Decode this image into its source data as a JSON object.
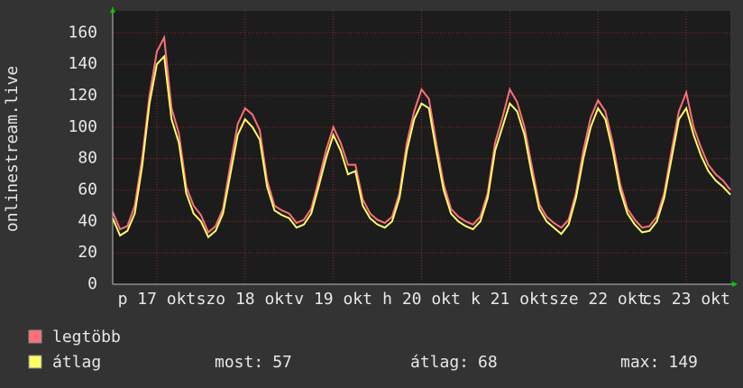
{
  "chart_data": {
    "type": "line",
    "ylabel": "onlinestream.live",
    "x": [
      0,
      2,
      4,
      6,
      8,
      10,
      12,
      14,
      16,
      18,
      20,
      22,
      24,
      26,
      28,
      30,
      32,
      34,
      36,
      38,
      40,
      42,
      44,
      46,
      48,
      50,
      52,
      54,
      56,
      58,
      60,
      62,
      64,
      66,
      68,
      70,
      72,
      74,
      76,
      78,
      80,
      82,
      84,
      86,
      88,
      90,
      92,
      94,
      96,
      98,
      100,
      102,
      104,
      106,
      108,
      110,
      112,
      114,
      116,
      118,
      120,
      122,
      124,
      126,
      128,
      130,
      132,
      134,
      136,
      138,
      140,
      142,
      144,
      146,
      148,
      150,
      152,
      154,
      156,
      158,
      160,
      162,
      164,
      166,
      168
    ],
    "series": [
      {
        "name": "legtöbb",
        "color": "#ff707a",
        "values": [
          46,
          35,
          37,
          50,
          80,
          120,
          148,
          157,
          112,
          96,
          62,
          50,
          44,
          33,
          37,
          48,
          76,
          102,
          112,
          108,
          98,
          66,
          50,
          47,
          45,
          39,
          41,
          48,
          66,
          85,
          100,
          90,
          76,
          76,
          54,
          45,
          41,
          39,
          43,
          58,
          90,
          110,
          124,
          118,
          90,
          64,
          48,
          43,
          40,
          38,
          43,
          58,
          90,
          106,
          124,
          116,
          100,
          75,
          51,
          43,
          39,
          36,
          41,
          58,
          85,
          106,
          117,
          110,
          90,
          64,
          48,
          41,
          36,
          37,
          43,
          58,
          85,
          110,
          122,
          100,
          87,
          76,
          70,
          66,
          60
        ]
      },
      {
        "name": "átlag",
        "color": "#ffff66",
        "values": [
          42,
          31,
          34,
          45,
          75,
          115,
          140,
          145,
          105,
          90,
          58,
          45,
          40,
          30,
          34,
          45,
          70,
          95,
          105,
          100,
          92,
          62,
          47,
          44,
          42,
          36,
          38,
          45,
          62,
          80,
          95,
          85,
          70,
          72,
          50,
          42,
          38,
          36,
          40,
          55,
          85,
          105,
          115,
          112,
          85,
          60,
          45,
          40,
          37,
          35,
          40,
          55,
          85,
          100,
          115,
          110,
          95,
          70,
          48,
          40,
          36,
          32,
          38,
          55,
          80,
          100,
          112,
          105,
          85,
          60,
          45,
          38,
          33,
          34,
          40,
          55,
          80,
          105,
          112,
          95,
          82,
          72,
          66,
          62,
          57
        ]
      }
    ],
    "xlim": [
      0,
      168
    ],
    "xticks": [
      {
        "value": 12,
        "label": "p 17 okt"
      },
      {
        "value": 36,
        "label": "szo 18 okt"
      },
      {
        "value": 60,
        "label": "v 19 okt"
      },
      {
        "value": 84,
        "label": "h 20 okt"
      },
      {
        "value": 108,
        "label": "k 21 okt"
      },
      {
        "value": 132,
        "label": "sze 22 okt"
      },
      {
        "value": 156,
        "label": "cs 23 okt"
      }
    ],
    "ylim": [
      0,
      174
    ],
    "yticks": [
      0,
      20,
      40,
      60,
      80,
      100,
      120,
      140,
      160
    ],
    "grid": true,
    "stats": [
      {
        "label": "most:",
        "value": 57
      },
      {
        "label": "átlag:",
        "value": 68
      },
      {
        "label": "max:",
        "value": 149
      }
    ]
  }
}
